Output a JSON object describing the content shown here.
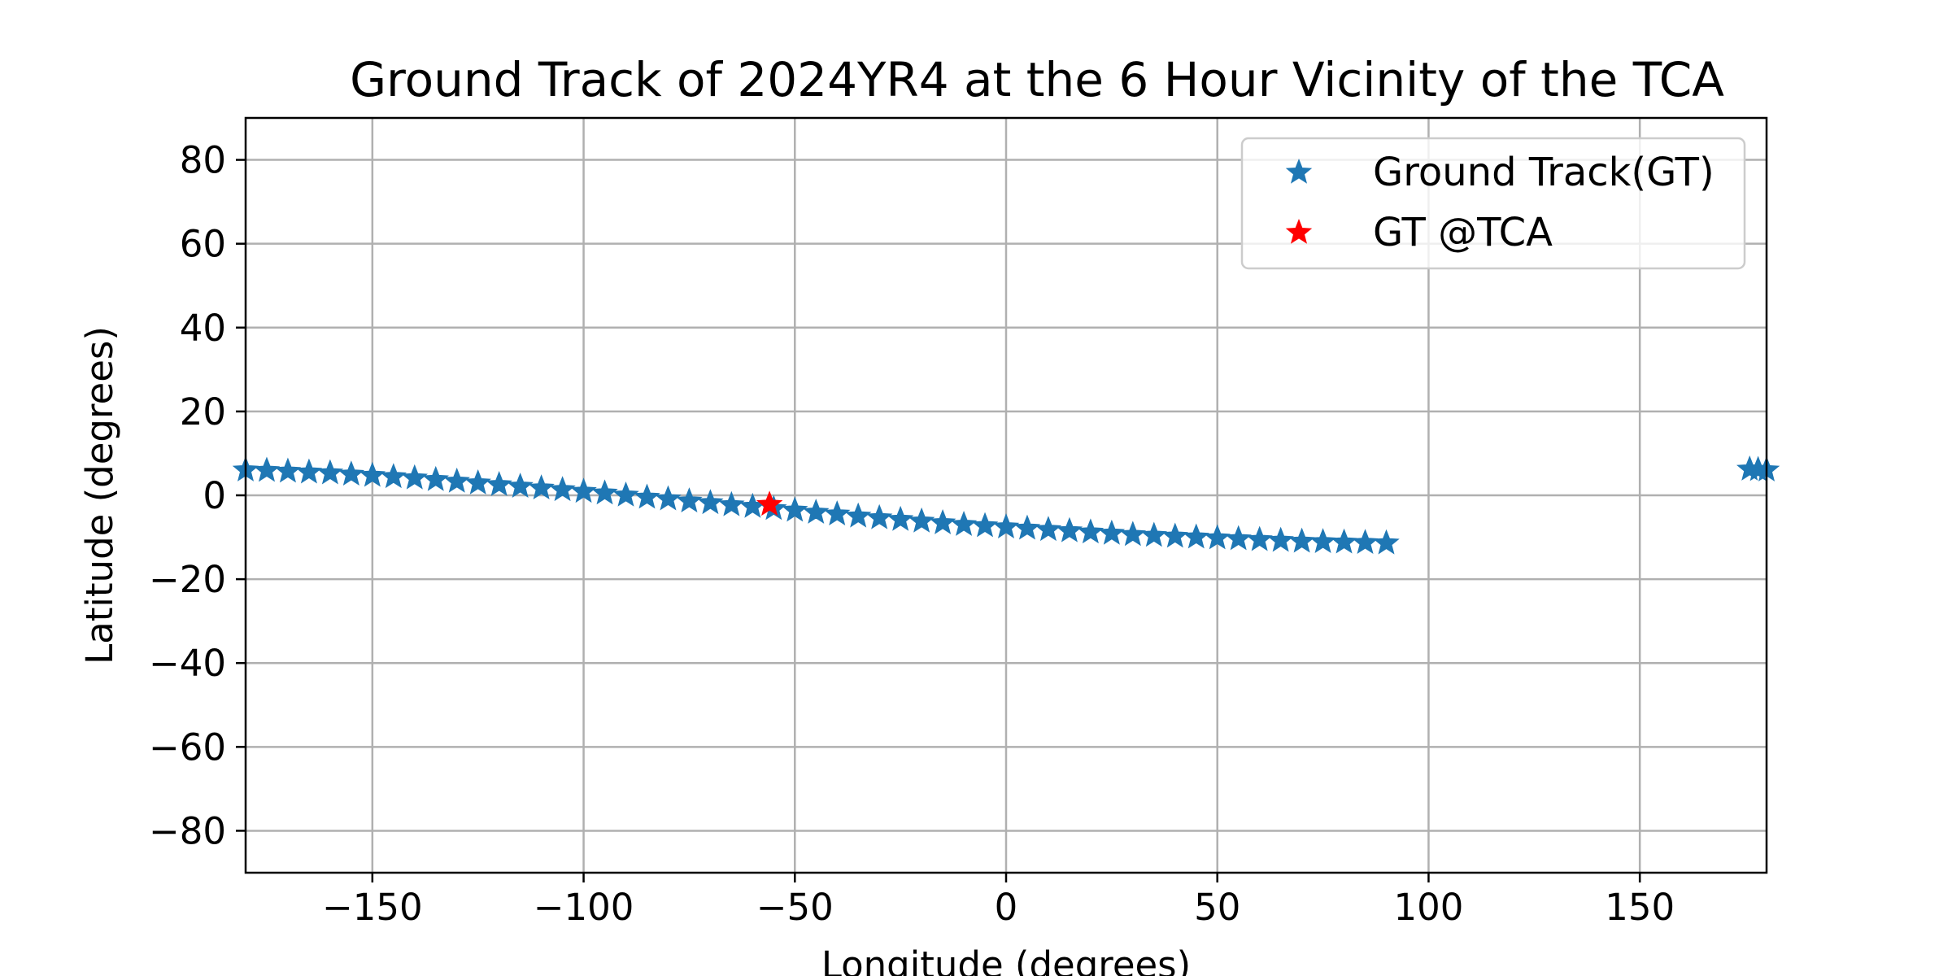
{
  "chart_data": {
    "type": "scatter",
    "title": "Ground Track of 2024YR4 at the 6 Hour Vicinity of the TCA",
    "xlabel": "Longitude (degrees)",
    "ylabel": "Latitude (degrees)",
    "xlim": [
      -180,
      180
    ],
    "ylim": [
      -90,
      90
    ],
    "xticks": [
      -150,
      -100,
      -50,
      0,
      50,
      100,
      150
    ],
    "yticks": [
      -80,
      -60,
      -40,
      -20,
      0,
      20,
      40,
      60,
      80
    ],
    "xtick_labels": [
      "−150",
      "−100",
      "−50",
      "0",
      "50",
      "100",
      "150"
    ],
    "ytick_labels": [
      "−80",
      "−60",
      "−40",
      "−20",
      "0",
      "20",
      "40",
      "60",
      "80"
    ],
    "grid": true,
    "legend_position": "top-right",
    "marker": "star",
    "series": [
      {
        "name": "Ground Track(GT)",
        "color": "#1f77b4",
        "segments": [
          {
            "x": [
              -180,
              -175,
              -170,
              -165,
              -160,
              -155,
              -150,
              -145,
              -140,
              -135,
              -130,
              -125,
              -120,
              -115,
              -110,
              -105,
              -100,
              -95,
              -90,
              -85,
              -80,
              -75,
              -70,
              -65,
              -60,
              -55,
              -50,
              -45,
              -40,
              -35,
              -30,
              -25,
              -20,
              -15,
              -10,
              -5,
              0,
              5,
              10,
              15,
              20,
              25,
              30,
              35,
              40,
              45,
              50,
              55,
              60,
              65,
              70,
              75,
              80,
              85,
              90
            ],
            "y": [
              6.0,
              5.9,
              5.7,
              5.5,
              5.3,
              5.0,
              4.7,
              4.4,
              4.1,
              3.7,
              3.3,
              2.9,
              2.5,
              2.1,
              1.7,
              1.3,
              0.9,
              0.5,
              0.0,
              -0.5,
              -0.9,
              -1.4,
              -1.8,
              -2.3,
              -2.7,
              -3.2,
              -3.6,
              -4.1,
              -4.5,
              -5.0,
              -5.4,
              -5.8,
              -6.2,
              -6.6,
              -7.0,
              -7.3,
              -7.6,
              -7.9,
              -8.2,
              -8.5,
              -8.8,
              -9.1,
              -9.4,
              -9.6,
              -9.8,
              -10.0,
              -10.2,
              -10.4,
              -10.6,
              -10.8,
              -11.0,
              -11.1,
              -11.2,
              -11.3,
              -11.4
            ]
          },
          {
            "x": [
              176,
              178,
              180
            ],
            "y": [
              6.2,
              6.1,
              6.0
            ]
          }
        ]
      },
      {
        "name": "GT @TCA",
        "color": "#ff0000",
        "segments": [
          {
            "x": [
              -56
            ],
            "y": [
              -2.2
            ]
          }
        ]
      }
    ]
  }
}
